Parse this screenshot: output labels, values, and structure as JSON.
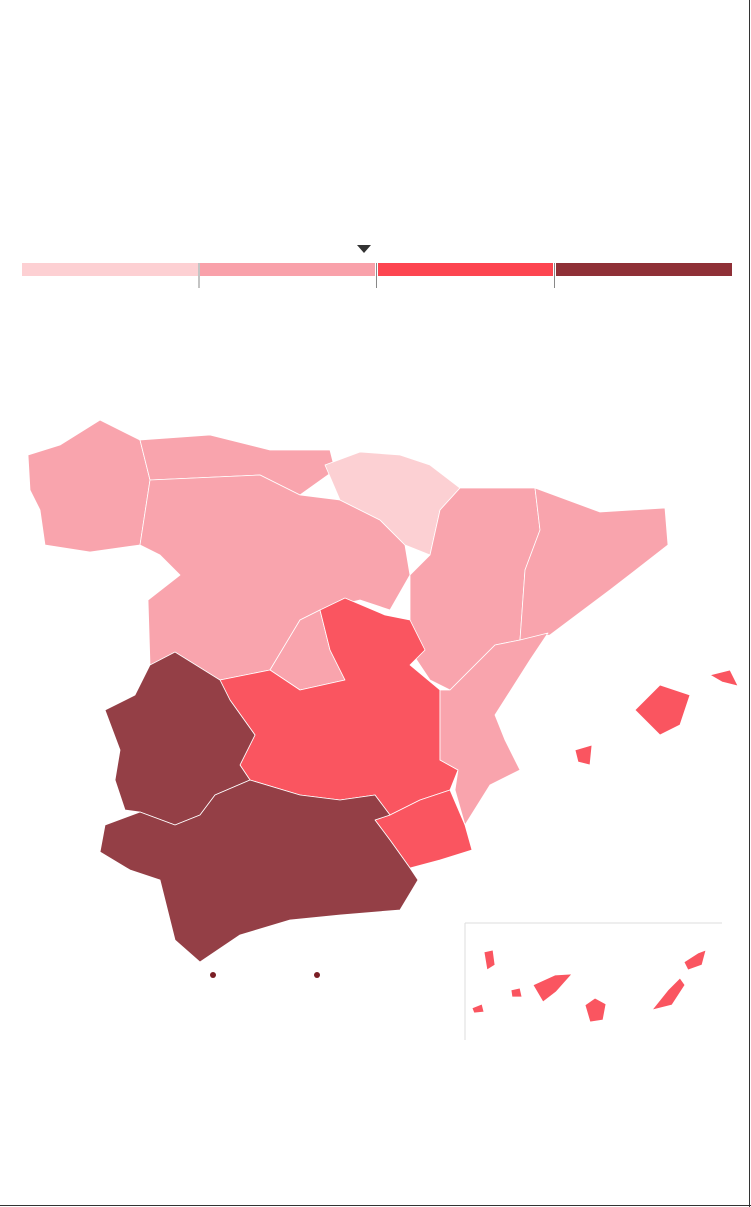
{
  "map": {
    "type": "choropleth",
    "scale_colors": [
      "#fdd0d3",
      "#f9a1aa",
      "#fd4550",
      "#8f3037"
    ],
    "region_colors": [
      "#fcd0d3",
      "#f9a4ad",
      "#fa5560",
      "#943f46"
    ],
    "dot_color": "#7a1e24"
  }
}
